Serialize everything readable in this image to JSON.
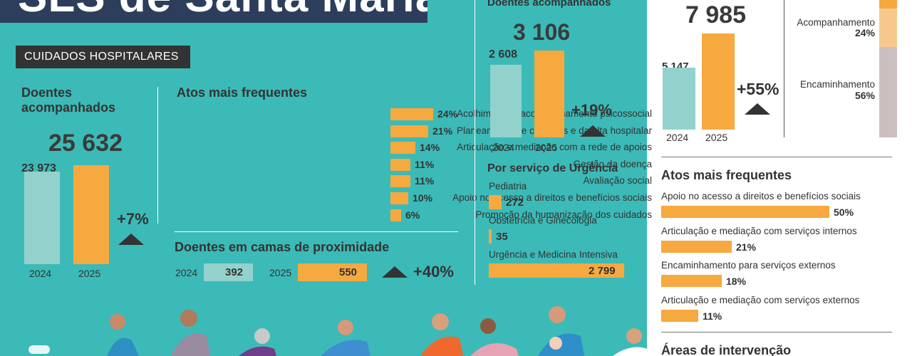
{
  "title": "SLS de Santa Maria",
  "section_tag": "CUIDADOS HOSPITALARES",
  "colors": {
    "teal_bg": "#3cbab7",
    "teal_bar": "#93d2cc",
    "orange": "#f5a93f",
    "dark": "#333333",
    "navy": "#2c3e5b"
  },
  "chart_data": [
    {
      "type": "bar",
      "title": "Doentes acompanhados",
      "categories": [
        "2024",
        "2025"
      ],
      "values": [
        23973,
        25632
      ],
      "labels": [
        "23 973",
        "25 632"
      ],
      "change": "+7%"
    },
    {
      "type": "bar",
      "title": "Atos mais frequentes",
      "orientation": "horizontal",
      "categories": [
        "Acolhimento e acompanhamento psicossocial",
        "Planeamento de cuidados e da alta hospitalar",
        "Articulação e mediação com a rede de apoios",
        "Gestão da doença",
        "Avaliação social",
        "Apoio no acesso a direitos e benefícios sociais",
        "Promoção da humanização dos cuidados"
      ],
      "values": [
        24,
        21,
        14,
        11,
        11,
        10,
        6
      ],
      "labels": [
        "24%",
        "21%",
        "14%",
        "11%",
        "11%",
        "10%",
        "6%"
      ]
    },
    {
      "type": "bar",
      "title": "Doentes em camas de proximidade",
      "orientation": "horizontal",
      "categories": [
        "2024",
        "2025"
      ],
      "values": [
        392,
        550
      ],
      "labels": [
        "392",
        "550"
      ],
      "change": "+40%"
    },
    {
      "type": "bar",
      "title": "Doentes acompanhados",
      "categories": [
        "2024",
        "2025"
      ],
      "values": [
        2608,
        3106
      ],
      "labels": [
        "2 608",
        "3 106"
      ],
      "change": "+19%"
    },
    {
      "type": "bar",
      "title": "Por serviço de Urgência",
      "orientation": "horizontal",
      "categories": [
        "Pediatria",
        "Obstetrícia e Ginecologia",
        "Urgência e Medicina Intensiva"
      ],
      "values": [
        272,
        35,
        2799
      ],
      "labels": [
        "272",
        "35",
        "2 799"
      ]
    },
    {
      "type": "bar",
      "categories": [
        "2024",
        "2025"
      ],
      "values": [
        5147,
        7985
      ],
      "labels": [
        "5 147",
        "7 985"
      ],
      "change": "+55%"
    },
    {
      "type": "bar",
      "stacked": true,
      "categories": [
        "Acompanhamento",
        "Encaminhamento"
      ],
      "values": [
        24,
        56
      ],
      "labels": [
        "24%",
        "56%"
      ]
    },
    {
      "type": "bar",
      "title": "Atos mais frequentes",
      "orientation": "horizontal",
      "categories": [
        "Apoio no acesso a direitos e benefícios sociais",
        "Articulação e mediação com serviços internos",
        "Encaminhamento para serviços externos",
        "Articulação e mediação com serviços externos"
      ],
      "values": [
        50,
        21,
        18,
        11
      ],
      "labels": [
        "50%",
        "21%",
        "18%",
        "11%"
      ]
    }
  ],
  "right_bottom_heading": "Áreas de intervenção",
  "icons": [
    "people-illustration"
  ]
}
